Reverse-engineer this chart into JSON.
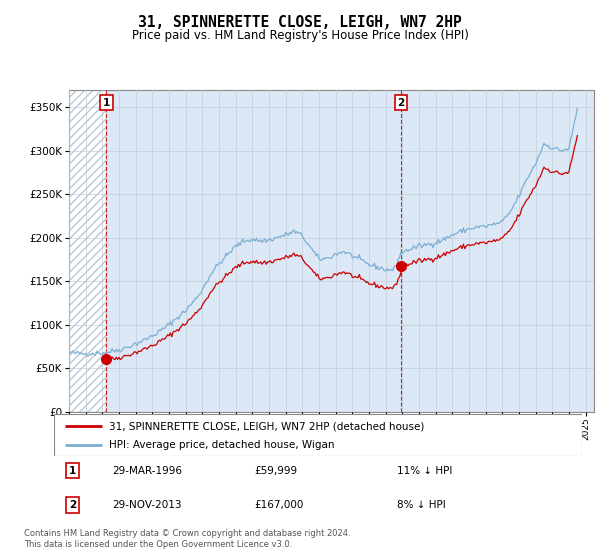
{
  "title": "31, SPINNERETTE CLOSE, LEIGH, WN7 2HP",
  "subtitle": "Price paid vs. HM Land Registry's House Price Index (HPI)",
  "ylim": [
    0,
    370000
  ],
  "yticks": [
    0,
    50000,
    100000,
    150000,
    200000,
    250000,
    300000,
    350000
  ],
  "xlim_start": 1994.0,
  "xlim_end": 2025.5,
  "sale1_date": 1996.24,
  "sale1_price": 59999,
  "sale1_label": "1",
  "sale2_date": 2013.91,
  "sale2_price": 167000,
  "sale2_label": "2",
  "legend_line1": "31, SPINNERETTE CLOSE, LEIGH, WN7 2HP (detached house)",
  "legend_line2": "HPI: Average price, detached house, Wigan",
  "footer": "Contains HM Land Registry data © Crown copyright and database right 2024.\nThis data is licensed under the Open Government Licence v3.0.",
  "table_row1": [
    "29-MAR-1996",
    "£59,999",
    "11% ↓ HPI"
  ],
  "table_row2": [
    "29-NOV-2013",
    "£167,000",
    "8% ↓ HPI"
  ],
  "hpi_color": "#7bafd4",
  "sale_color": "#cc0000",
  "background_color": "#dce8f5",
  "hatch_bg": "#f0f0f8",
  "grid_color": "#c0ccd8"
}
